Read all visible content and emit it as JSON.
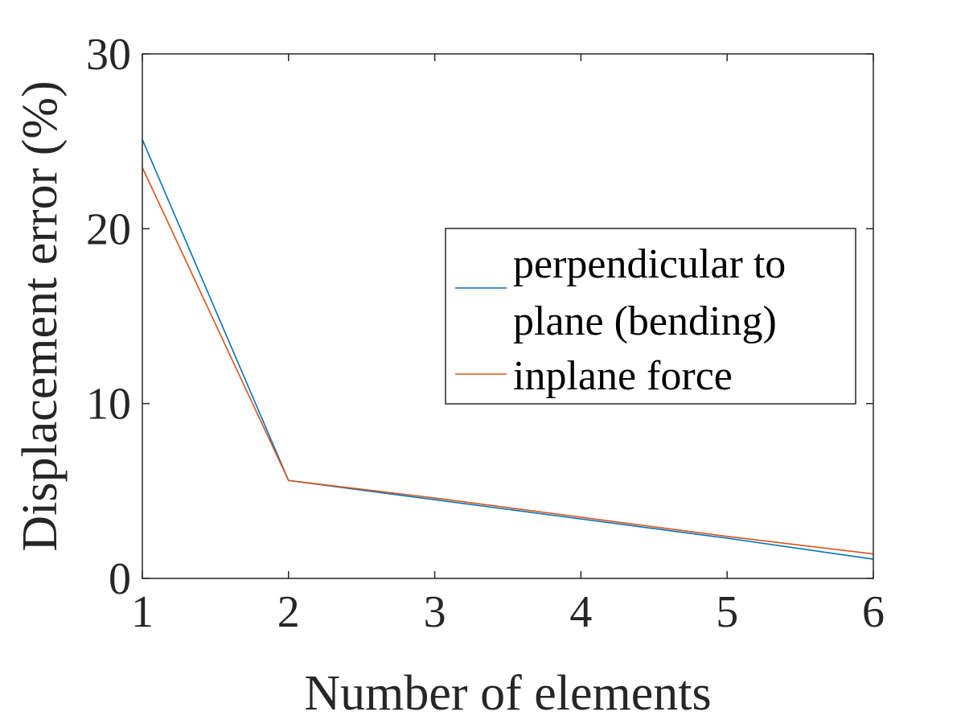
{
  "chart_data": {
    "type": "line",
    "xlabel": "Number of elements",
    "ylabel": "Displacement error (%)",
    "x": [
      1,
      2,
      3,
      4,
      5,
      6
    ],
    "xlim": [
      1,
      6
    ],
    "ylim": [
      0,
      30
    ],
    "xticks": [
      "1",
      "2",
      "3",
      "4",
      "5",
      "6"
    ],
    "yticks": [
      "0",
      "10",
      "20",
      "30"
    ],
    "grid": false,
    "legend_position": "right",
    "series": [
      {
        "name": "perpendicular to plane (bending)",
        "legend_lines": [
          "perpendicular to",
          "plane (bending)"
        ],
        "color": "#0072BD",
        "values": [
          25.1,
          5.6,
          4.5,
          3.4,
          2.3,
          1.1
        ]
      },
      {
        "name": "inplane force",
        "legend_lines": [
          "inplane force"
        ],
        "color": "#D95319",
        "values": [
          23.5,
          5.6,
          4.6,
          3.5,
          2.4,
          1.4
        ]
      }
    ],
    "axis_color": "#262626"
  }
}
